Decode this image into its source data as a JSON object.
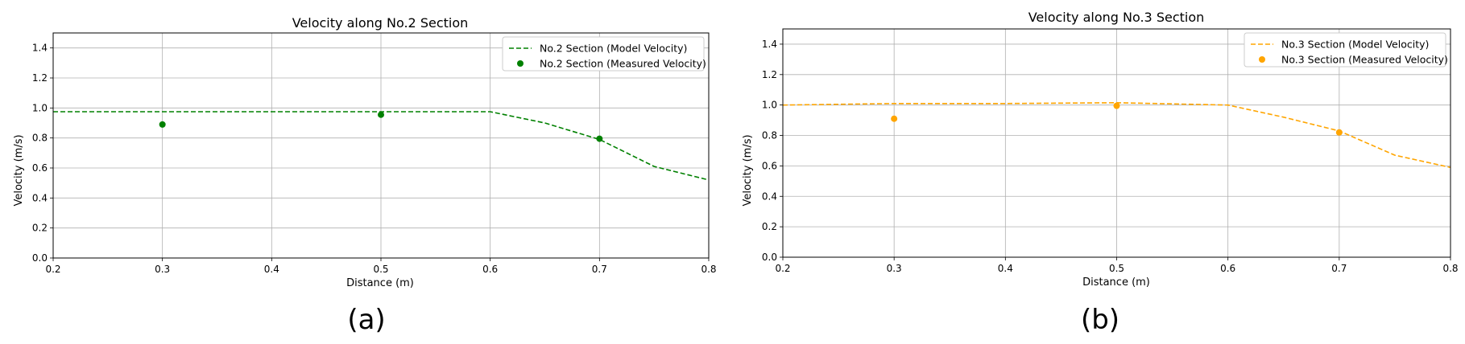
{
  "chart_data": [
    {
      "type": "line",
      "panel_label": "(a)",
      "title": "Velocity along No.2 Section",
      "xlabel": "Distance (m)",
      "ylabel": "Velocity (m/s)",
      "xlim": [
        0.2,
        0.8
      ],
      "ylim": [
        0.0,
        1.5
      ],
      "xticks": [
        "0.2",
        "0.3",
        "0.4",
        "0.5",
        "0.6",
        "0.7",
        "0.8"
      ],
      "yticks": [
        "0.0",
        "0.2",
        "0.4",
        "0.6",
        "0.8",
        "1.0",
        "1.2",
        "1.4"
      ],
      "grid": true,
      "legend_position": "top-right",
      "color": "#008000",
      "series": [
        {
          "name": "No.2 Section (Model Velocity)",
          "style": "dashed-line",
          "x": [
            0.2,
            0.3,
            0.4,
            0.5,
            0.6,
            0.65,
            0.7,
            0.75,
            0.8
          ],
          "y": [
            0.975,
            0.975,
            0.975,
            0.975,
            0.975,
            0.9,
            0.79,
            0.61,
            0.52
          ]
        },
        {
          "name": "No.2 Section (Measured Velocity)",
          "style": "markers",
          "x": [
            0.3,
            0.5,
            0.7
          ],
          "y": [
            0.89,
            0.955,
            0.795
          ]
        }
      ]
    },
    {
      "type": "line",
      "panel_label": "(b)",
      "title": "Velocity along No.3 Section",
      "xlabel": "Distance (m)",
      "ylabel": "Velocity (m/s)",
      "xlim": [
        0.2,
        0.8
      ],
      "ylim": [
        0.0,
        1.5
      ],
      "xticks": [
        "0.2",
        "0.3",
        "0.4",
        "0.5",
        "0.6",
        "0.7",
        "0.8"
      ],
      "yticks": [
        "0.0",
        "0.2",
        "0.4",
        "0.6",
        "0.8",
        "1.0",
        "1.2",
        "1.4"
      ],
      "grid": true,
      "legend_position": "top-right",
      "color": "#FFA500",
      "series": [
        {
          "name": "No.3 Section (Model Velocity)",
          "style": "dashed-line",
          "x": [
            0.2,
            0.3,
            0.4,
            0.5,
            0.6,
            0.65,
            0.7,
            0.75,
            0.8
          ],
          "y": [
            1.0,
            1.01,
            1.01,
            1.015,
            1.0,
            0.92,
            0.83,
            0.67,
            0.59
          ]
        },
        {
          "name": "No.3 Section (Measured Velocity)",
          "style": "markers",
          "x": [
            0.3,
            0.5,
            0.7
          ],
          "y": [
            0.91,
            0.995,
            0.82
          ]
        }
      ]
    }
  ]
}
